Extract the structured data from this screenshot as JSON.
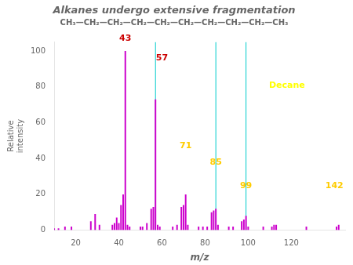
{
  "chart_data": {
    "type": "bar",
    "title": "Alkanes undergo extensive fragmentation",
    "subtitle": "CH₃—CH₂—CH₂—CH₂—CH₂—CH₂—CH₂—CH₂—CH₂—CH₃",
    "xlabel": "m/z",
    "ylabel": "Relative\nintensity",
    "x": [
      10,
      12,
      15,
      18,
      27,
      29,
      31,
      37,
      38,
      39,
      40,
      41,
      42,
      43,
      44,
      45,
      50,
      51,
      53,
      55,
      56,
      57,
      58,
      59,
      65,
      67,
      69,
      70,
      71,
      72,
      77,
      79,
      81,
      83,
      84,
      85,
      86,
      91,
      93,
      97,
      98,
      99,
      100,
      107,
      111,
      112,
      113,
      127,
      141,
      142
    ],
    "values": [
      1,
      1,
      2,
      2,
      5,
      9,
      3,
      3,
      4,
      7,
      4,
      14,
      20,
      100,
      3,
      2,
      2,
      2,
      4,
      12,
      13,
      73,
      3,
      2,
      2,
      3,
      13,
      14,
      20,
      3,
      2,
      2,
      2,
      10,
      11,
      12,
      3,
      2,
      2,
      5,
      6,
      8,
      2,
      2,
      2,
      3,
      3,
      2,
      2,
      3
    ],
    "color": "#cc00cc",
    "xlim": [
      10,
      145
    ],
    "ylim": [
      0,
      105
    ],
    "xticks": [
      20,
      40,
      60,
      80,
      100,
      120
    ],
    "yticks": [
      0,
      20,
      40,
      60,
      80,
      100
    ],
    "grid": false,
    "reference_lines": [
      {
        "x": 57,
        "color": "#00cccc"
      },
      {
        "x": 85,
        "color": "#00cccc"
      },
      {
        "x": 99,
        "color": "#00cccc"
      }
    ],
    "annotations": [
      {
        "text": "43",
        "x": 43,
        "y": 104,
        "color": "#cc0000"
      },
      {
        "text": "57",
        "x": 60,
        "y": 93,
        "color": "#cc0000"
      },
      {
        "text": "71",
        "x": 71,
        "y": 44,
        "color": "#ffcc00"
      },
      {
        "text": "85",
        "x": 85,
        "y": 35,
        "color": "#ffcc00"
      },
      {
        "text": "99",
        "x": 99,
        "y": 22,
        "color": "#ffcc00"
      },
      {
        "text": "142",
        "x": 140,
        "y": 22,
        "color": "#ffcc00"
      },
      {
        "text": "Decane",
        "x": 118,
        "y": 78,
        "color": "#ffff00"
      }
    ]
  }
}
